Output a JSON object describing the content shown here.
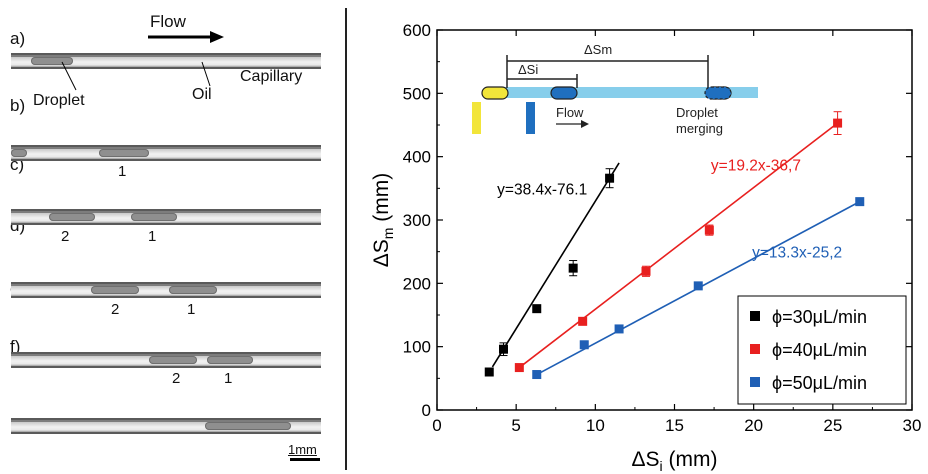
{
  "left_panel": {
    "flow_label": "Flow",
    "panel_labels": [
      "a)",
      "b)",
      "c)",
      "d)",
      "e)",
      "f)"
    ],
    "droplet_label": "Droplet",
    "oil_label": "Oil",
    "capillary_label": "Capillary",
    "numbers": {
      "b": [
        "1"
      ],
      "c": [
        "2",
        "1"
      ],
      "d": [
        "2",
        "1"
      ],
      "e": [
        "2",
        "1"
      ]
    },
    "scalebar_label": "1mm"
  },
  "inset": {
    "dsm_label": "ΔSm",
    "dsi_label": "ΔSi",
    "flow_label": "Flow",
    "merging_line1": "Droplet",
    "merging_line2": "merging",
    "colors": {
      "capillary": "#87ceeb",
      "yellow": "#f2e53a",
      "blue": "#1f6fbf"
    }
  },
  "chart_data": {
    "type": "scatter",
    "xlabel": "ΔS",
    "xlabel_sub": "i",
    "xlabel_unit": " (mm)",
    "ylabel": "ΔS",
    "ylabel_sub": "m",
    "ylabel_unit": " (mm)",
    "xlim": [
      0,
      30
    ],
    "ylim": [
      0,
      600
    ],
    "xticks": [
      0,
      5,
      10,
      15,
      20,
      25,
      30
    ],
    "yticks": [
      0,
      100,
      200,
      300,
      400,
      500,
      600
    ],
    "legend_position": "bottom-right",
    "series": [
      {
        "name": "ϕ=30μL/min",
        "color": "#000000",
        "points": [
          {
            "x": 3.3,
            "y": 60,
            "err": 4
          },
          {
            "x": 4.2,
            "y": 96,
            "err": 10
          },
          {
            "x": 6.3,
            "y": 160,
            "err": 4
          },
          {
            "x": 8.6,
            "y": 224,
            "err": 12
          },
          {
            "x": 10.9,
            "y": 366,
            "err": 15
          }
        ],
        "fit": {
          "x": [
            3.5,
            11.5
          ],
          "label": "y=38.4x-76.1"
        }
      },
      {
        "name": "ϕ=40μL/min",
        "color": "#e8201f",
        "points": [
          {
            "x": 5.2,
            "y": 67,
            "err": 3
          },
          {
            "x": 9.2,
            "y": 140,
            "err": 4
          },
          {
            "x": 13.2,
            "y": 219,
            "err": 8
          },
          {
            "x": 17.2,
            "y": 284,
            "err": 8
          },
          {
            "x": 25.3,
            "y": 453,
            "err": 18
          }
        ],
        "fit": {
          "x": [
            5.2,
            25.3
          ],
          "label": "y=19.2x-36,7"
        }
      },
      {
        "name": "ϕ=50μL/min",
        "color": "#1f5fb5",
        "points": [
          {
            "x": 6.3,
            "y": 56,
            "err": 3
          },
          {
            "x": 9.3,
            "y": 103,
            "err": 3
          },
          {
            "x": 11.5,
            "y": 128,
            "err": 3
          },
          {
            "x": 16.5,
            "y": 196,
            "err": 3
          },
          {
            "x": 26.7,
            "y": 329,
            "err": 3
          }
        ],
        "fit": {
          "x": [
            6.3,
            26.7
          ],
          "label": "y=13.3x-25,2"
        }
      }
    ]
  }
}
